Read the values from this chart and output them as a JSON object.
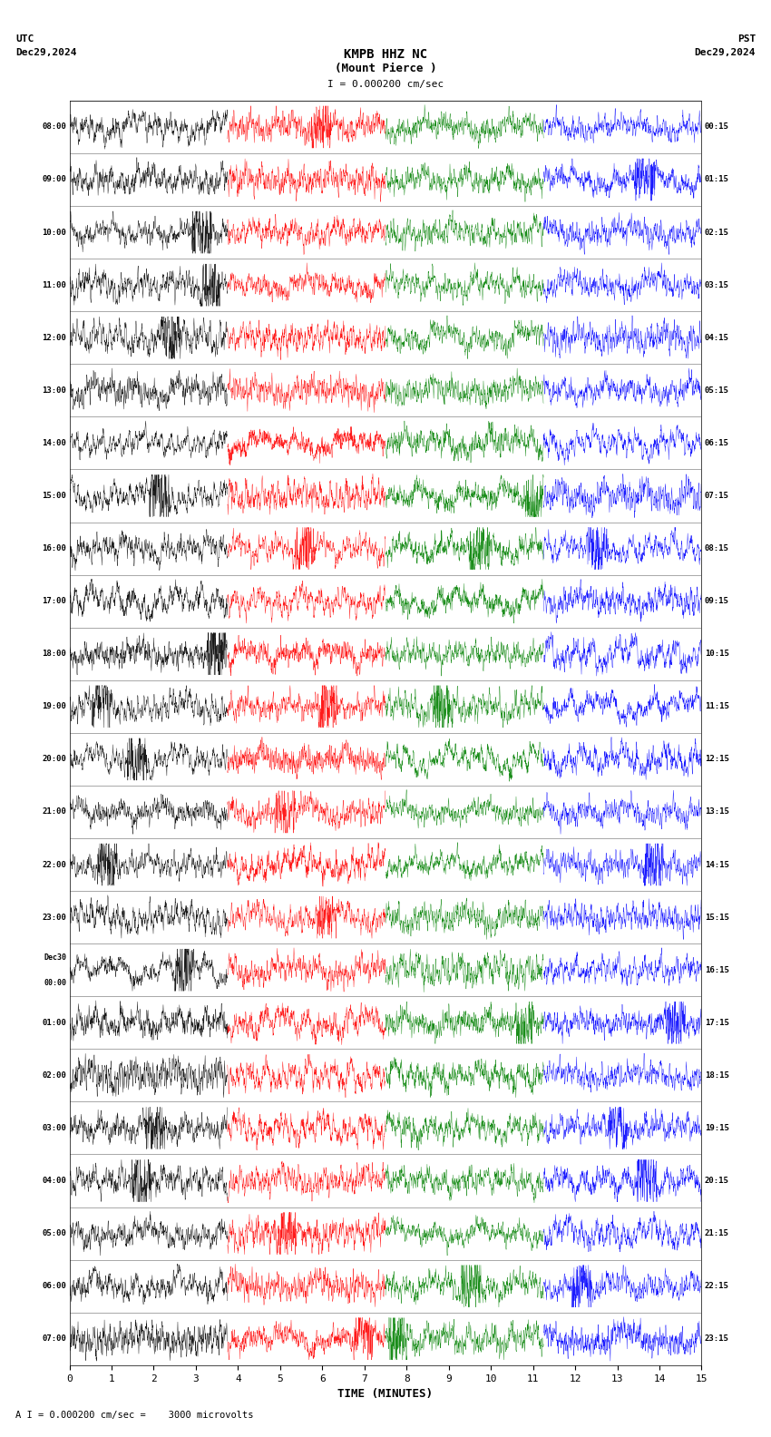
{
  "title_line1": "KMPB HHZ NC",
  "title_line2": "(Mount Pierce )",
  "scale_label": "I = 0.000200 cm/sec",
  "utc_label": "UTC",
  "utc_date": "Dec29,2024",
  "pst_label": "PST",
  "pst_date": "Dec29,2024",
  "bottom_label": "A I = 0.000200 cm/sec =    3000 microvolts",
  "xlabel": "TIME (MINUTES)",
  "left_times": [
    "08:00",
    "09:00",
    "10:00",
    "11:00",
    "12:00",
    "13:00",
    "14:00",
    "15:00",
    "16:00",
    "17:00",
    "18:00",
    "19:00",
    "20:00",
    "21:00",
    "22:00",
    "23:00",
    "Dec30|00:00",
    "01:00",
    "02:00",
    "03:00",
    "04:00",
    "05:00",
    "06:00",
    "07:00"
  ],
  "right_times": [
    "00:15",
    "01:15",
    "02:15",
    "03:15",
    "04:15",
    "05:15",
    "06:15",
    "07:15",
    "08:15",
    "09:15",
    "10:15",
    "11:15",
    "12:15",
    "13:15",
    "14:15",
    "15:15",
    "16:15",
    "17:15",
    "18:15",
    "19:15",
    "20:15",
    "21:15",
    "22:15",
    "23:15"
  ],
  "n_rows": 24,
  "n_minutes": 15,
  "background_color": "#ffffff",
  "colors": [
    "black",
    "red",
    "green",
    "blue"
  ],
  "fig_width": 8.5,
  "fig_height": 15.84
}
